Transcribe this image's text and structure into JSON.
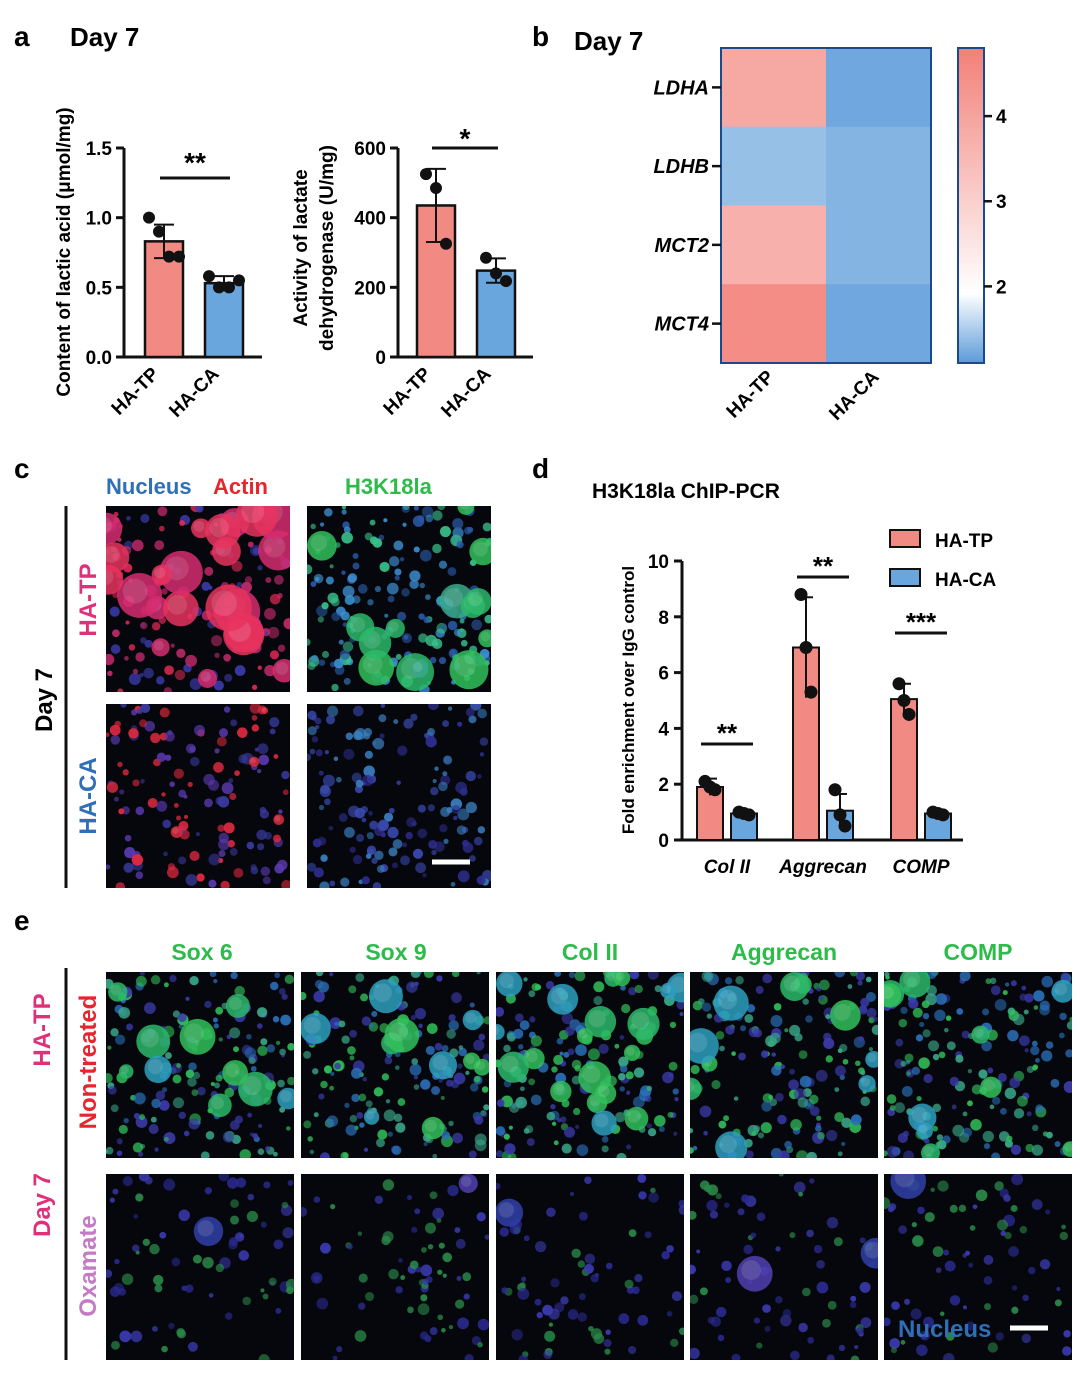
{
  "panels": {
    "a": "a",
    "b": "b",
    "c": "c",
    "d": "d",
    "e": "e"
  },
  "colors": {
    "ha_tp": "#f28a84",
    "ha_ca": "#6aa6de",
    "bar_edge": "#111111",
    "stain_green": "#2dbb4a",
    "stain_blue": "#2f6fb8",
    "stain_red": "#e5262f",
    "stain_pink": "#e0307a",
    "stain_violet": "#c47ac4"
  },
  "panel_a": {
    "day_label": "Day 7",
    "charts": [
      {
        "type": "bar",
        "categories": [
          "HA-TP",
          "HA-CA"
        ],
        "values": [
          0.83,
          0.53
        ],
        "errors": [
          0.12,
          0.05
        ],
        "points": [
          [
            1.0,
            0.9,
            0.72,
            0.72
          ],
          [
            0.58,
            0.5,
            0.5,
            0.55
          ]
        ],
        "ylabel": "Content of lactic acid (μmol/mg)",
        "ylim": [
          0,
          1.5
        ],
        "yticks": [
          0.0,
          0.5,
          1.0,
          1.5
        ],
        "ytick_labels": [
          "0.0",
          "0.5",
          "1.0",
          "1.5"
        ],
        "significance": "**"
      },
      {
        "type": "bar",
        "categories": [
          "HA-TP",
          "HA-CA"
        ],
        "values": [
          435,
          248
        ],
        "errors": [
          105,
          35
        ],
        "points": [
          [
            525,
            485,
            325
          ],
          [
            285,
            240,
            218
          ]
        ],
        "ylabel": "Activity of lactate dehydrogenase (U/mg)",
        "ylabel_lines": [
          "Activity of lactate",
          "dehydrogenase (U/mg)"
        ],
        "ylim": [
          0,
          600
        ],
        "yticks": [
          0,
          200,
          400,
          600
        ],
        "ytick_labels": [
          "0",
          "200",
          "400",
          "600"
        ],
        "significance": "*"
      }
    ]
  },
  "panel_b": {
    "day_label": "Day 7",
    "chart_data": {
      "type": "heatmap",
      "rows": [
        "LDHA",
        "LDHB",
        "MCT2",
        "MCT4"
      ],
      "columns": [
        "HA-TP",
        "HA-CA"
      ],
      "values": [
        [
          3.9,
          1.2
        ],
        [
          1.4,
          1.3
        ],
        [
          3.7,
          1.3
        ],
        [
          4.5,
          1.2
        ]
      ],
      "colorbar_range": [
        1.1,
        4.8
      ],
      "colorbar_ticks": [
        2,
        3,
        4
      ],
      "colorbar_labels": [
        "2",
        "3",
        "4"
      ],
      "colormap": [
        "#5b9bd9",
        "#ffffff",
        "#f28078"
      ]
    }
  },
  "panel_c": {
    "header_blue": "Nucleus",
    "header_red": "Actin",
    "header_green": "H3K18la",
    "day_label": "Day 7",
    "row_tp": "HA-TP",
    "row_ca": "HA-CA"
  },
  "panel_d": {
    "title": "H3K18la ChIP-PCR",
    "chart_data": {
      "type": "bar",
      "categories": [
        "Col II",
        "Aggrecan",
        "COMP"
      ],
      "series": [
        {
          "name": "HA-TP",
          "values": [
            1.9,
            6.9,
            5.05
          ],
          "errors": [
            0.3,
            1.8,
            0.55
          ],
          "points": [
            [
              2.1,
              1.9,
              1.8
            ],
            [
              8.8,
              6.9,
              5.3
            ],
            [
              5.6,
              5.0,
              4.5
            ]
          ]
        },
        {
          "name": "HA-CA",
          "values": [
            0.95,
            1.05,
            0.95
          ],
          "errors": [
            0.1,
            0.6,
            0.1
          ],
          "points": [
            [
              1.0,
              0.95,
              0.9
            ],
            [
              1.8,
              0.9,
              0.5
            ],
            [
              1.0,
              0.95,
              0.9
            ]
          ]
        }
      ],
      "ylabel": "Fold enrichment over IgG control",
      "ylim": [
        0,
        10
      ],
      "yticks": [
        0,
        2,
        4,
        6,
        8,
        10
      ],
      "ytick_labels": [
        "0",
        "2",
        "4",
        "6",
        "8",
        "10"
      ],
      "significance": [
        "**",
        "**",
        "***"
      ],
      "legend_position": "top-right"
    }
  },
  "panel_e": {
    "columns": [
      "Sox 6",
      "Sox 9",
      "Col II",
      "Aggrecan",
      "COMP"
    ],
    "group_label": "HA-TP",
    "day_label": "Day 7",
    "row_nontreated": "Non-treated",
    "row_oxamate": "Oxamate",
    "nucleus_label": "Nucleus"
  }
}
